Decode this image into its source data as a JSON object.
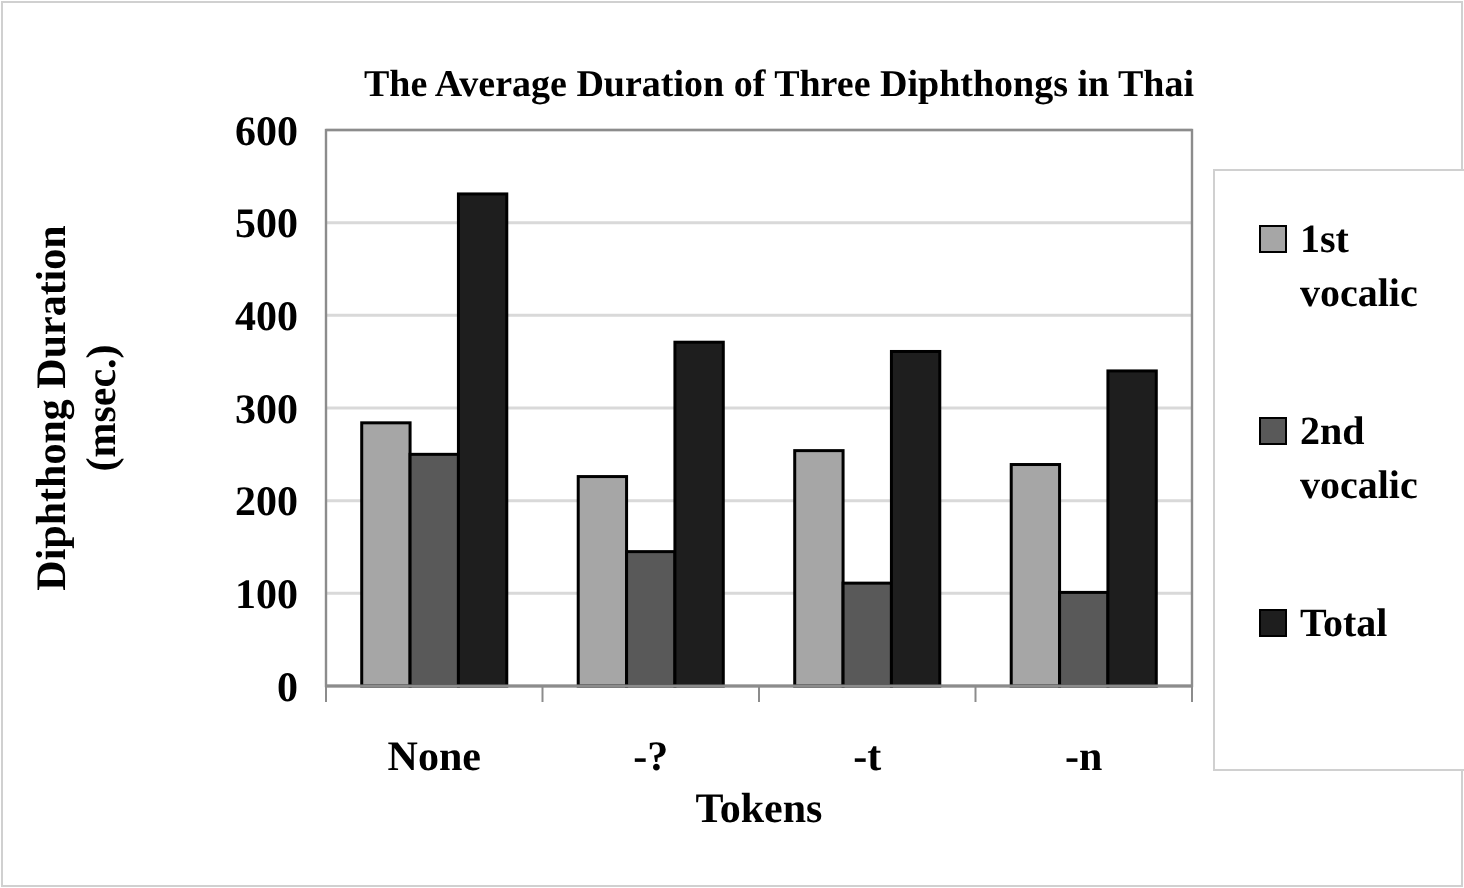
{
  "chart_data": {
    "type": "bar",
    "title": "The Average Duration of Three Diphthongs in Thai",
    "xlabel": "Tokens",
    "ylabel": "Diphthong Duration (msec.)",
    "categories": [
      "None",
      "-?",
      "-t",
      "-n"
    ],
    "series": [
      {
        "name": "1st vocalic",
        "color": "#a6a6a6",
        "values": [
          284,
          226,
          254,
          239
        ]
      },
      {
        "name": "2nd vocalic",
        "color": "#595959",
        "values": [
          250,
          145,
          111,
          101
        ]
      },
      {
        "name": "Total",
        "color": "#1e1e1e",
        "values": [
          531,
          371,
          361,
          340
        ]
      }
    ],
    "ylim": [
      0,
      600
    ],
    "yticks": [
      0,
      100,
      200,
      300,
      400,
      500,
      600
    ],
    "grid": "y",
    "legend": "right"
  }
}
